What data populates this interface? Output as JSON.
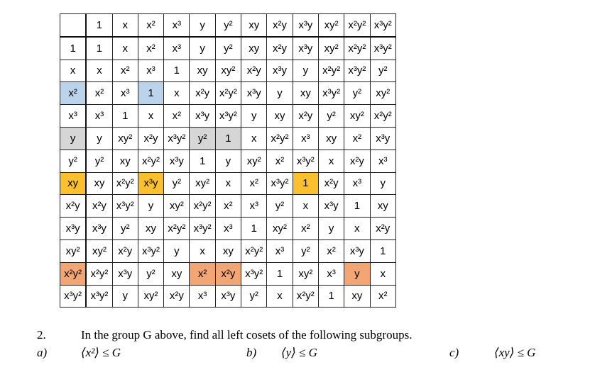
{
  "table": {
    "header": [
      "",
      "1",
      "x",
      "x²",
      "x³",
      "y",
      "y²",
      "xy",
      "x²y",
      "x³y",
      "xy²",
      "x²y²",
      "x³y²"
    ],
    "rows": [
      [
        "1",
        "1",
        "x",
        "x²",
        "x³",
        "y",
        "y²",
        "xy",
        "x²y",
        "x³y",
        "xy²",
        "x²y²",
        "x³y²"
      ],
      [
        "x",
        "x",
        "x²",
        "x³",
        "1",
        "xy",
        "xy²",
        "x²y",
        "x³y",
        "y",
        "x²y²",
        "x³y²",
        "y²"
      ],
      [
        "x²",
        "x²",
        "x³",
        "1",
        "x",
        "x²y",
        "x²y²",
        "x³y",
        "y",
        "xy",
        "x³y²",
        "y²",
        "xy²"
      ],
      [
        "x³",
        "x³",
        "1",
        "x",
        "x²",
        "x³y",
        "x³y²",
        "y",
        "xy",
        "x²y",
        "y²",
        "xy²",
        "x²y²"
      ],
      [
        "y",
        "y",
        "xy²",
        "x²y",
        "x³y²",
        "y²",
        "1",
        "x",
        "x²y²",
        "x³",
        "xy",
        "x²",
        "x³y"
      ],
      [
        "y²",
        "y²",
        "xy",
        "x²y²",
        "x³y",
        "1",
        "y",
        "xy²",
        "x²",
        "x³y²",
        "x",
        "x²y",
        "x³"
      ],
      [
        "xy",
        "xy",
        "x²y²",
        "x³y",
        "y²",
        "xy²",
        "x",
        "x²",
        "x³y²",
        "1",
        "x²y",
        "x³",
        "y"
      ],
      [
        "x²y",
        "x²y",
        "x³y²",
        "y",
        "xy²",
        "x²y²",
        "x²",
        "x³",
        "y²",
        "x",
        "x³y",
        "1",
        "xy"
      ],
      [
        "x³y",
        "x³y",
        "y²",
        "xy",
        "x²y²",
        "x³y²",
        "x³",
        "1",
        "xy²",
        "x²",
        "y",
        "x",
        "x²y"
      ],
      [
        "xy²",
        "xy²",
        "x²y",
        "x³y²",
        "y",
        "x",
        "xy",
        "x²y²",
        "x³",
        "y²",
        "x²",
        "x³y",
        "1"
      ],
      [
        "x²y²",
        "x²y²",
        "x³y",
        "y²",
        "xy",
        "x²",
        "x²y",
        "x³y²",
        "1",
        "xy²",
        "x³",
        "y",
        "x"
      ],
      [
        "x³y²",
        "x³y²",
        "y",
        "xy²",
        "x²y",
        "x³",
        "x³y",
        "y²",
        "x",
        "x²y²",
        "1",
        "xy",
        "x²"
      ]
    ],
    "highlights": {
      "blue_color": "#bcd3ec",
      "gray_color": "#d6d6d6",
      "yellow_color": "#fbc02d",
      "orange_color": "#f4a574",
      "blue_cells": [
        [
          3,
          0
        ],
        [
          3,
          3
        ]
      ],
      "gray_cells": [
        [
          5,
          0
        ],
        [
          5,
          5
        ],
        [
          5,
          6
        ]
      ],
      "yellow_cells": [
        [
          7,
          0
        ],
        [
          7,
          3
        ],
        [
          7,
          9
        ]
      ],
      "orange_cells": [
        [
          11,
          0
        ],
        [
          11,
          5
        ],
        [
          11,
          6
        ],
        [
          11,
          11
        ]
      ]
    }
  },
  "question": {
    "number": "2.",
    "text": "In the group G above, find all left cosets of the following subgroups.",
    "parts": [
      {
        "label": "a)",
        "subgroup": "⟨x²⟩ ≤ G"
      },
      {
        "label": "b)",
        "subgroup": "⟨y⟩ ≤ G"
      },
      {
        "label": "c)",
        "subgroup": "⟨xy⟩ ≤ G"
      }
    ]
  }
}
